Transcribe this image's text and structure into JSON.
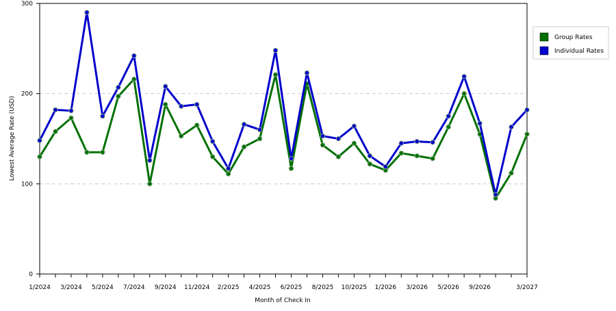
{
  "chart_data": {
    "type": "line",
    "x_label": "Month of Check In",
    "y_label": "Lowest Average Rate (USD)",
    "categories": [
      "1/2024",
      null,
      "3/2024",
      null,
      "5/2024",
      null,
      "7/2024",
      null,
      "9/2024",
      null,
      "11/2024",
      null,
      "2/2025",
      null,
      "4/2025",
      null,
      "6/2025",
      null,
      "8/2025",
      null,
      "10/2025",
      null,
      "1/2026",
      null,
      "3/2026",
      null,
      "5/2026",
      null,
      "9/2026",
      null,
      null,
      "3/2027"
    ],
    "series": [
      {
        "name": "Group Rates",
        "color": "#007000",
        "values": [
          130,
          158,
          173,
          135,
          135,
          197,
          216,
          100,
          188,
          153,
          165,
          130,
          111,
          141,
          150,
          221,
          117,
          211,
          143,
          130,
          145,
          122,
          115,
          134,
          131,
          128,
          163,
          200,
          155,
          84,
          112,
          155
        ]
      },
      {
        "name": "Individual Rates",
        "color": "#0000cc",
        "values": [
          148,
          182,
          181,
          290,
          175,
          207,
          242,
          126,
          208,
          186,
          188,
          147,
          117,
          166,
          160,
          248,
          128,
          223,
          153,
          150,
          164,
          131,
          119,
          145,
          147,
          146,
          175,
          219,
          167,
          88,
          163,
          182
        ]
      }
    ],
    "ylim": [
      0,
      300
    ],
    "yticks": [
      0,
      100,
      200,
      300
    ],
    "grid": true,
    "legend": "right"
  }
}
